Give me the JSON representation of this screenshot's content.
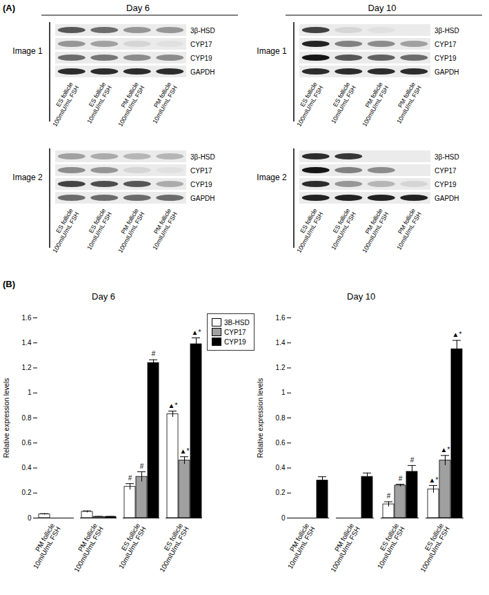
{
  "panel_labels": [
    "(A)",
    "(B)"
  ],
  "blots": {
    "lanes": [
      "ES follicle\n100mIU/mL FSH",
      "ES follicle\n10mIU/mL FSH",
      "PM follicle\n100mIU/mL FSH",
      "PM follicle\n10mIU/mL FSH"
    ],
    "days": [
      {
        "title": "Day 6",
        "images": [
          {
            "label": "Image 1",
            "rows": [
              {
                "protein": "3β-HSD",
                "intensity": [
                  0.7,
                  0.6,
                  0.4,
                  0.4
                ]
              },
              {
                "protein": "CYP17",
                "intensity": [
                  0.4,
                  0.35,
                  0.1,
                  0.05
                ]
              },
              {
                "protein": "CYP19",
                "intensity": [
                  0.6,
                  0.55,
                  0.45,
                  0.45
                ]
              },
              {
                "protein": "GAPDH",
                "intensity": [
                  0.9,
                  0.9,
                  0.9,
                  0.9
                ]
              }
            ]
          },
          {
            "label": "Image 2",
            "rows": [
              {
                "protein": "3β-HSD",
                "intensity": [
                  0.35,
                  0.3,
                  0.25,
                  0.25
                ]
              },
              {
                "protein": "CYP17",
                "intensity": [
                  0.45,
                  0.4,
                  0.1,
                  0.05
                ]
              },
              {
                "protein": "CYP19",
                "intensity": [
                  0.8,
                  0.75,
                  0.7,
                  0.3
                ]
              },
              {
                "protein": "GAPDH",
                "intensity": [
                  0.6,
                  0.6,
                  0.6,
                  0.6
                ]
              }
            ]
          }
        ]
      },
      {
        "title": "Day 10",
        "images": [
          {
            "label": "Image 1",
            "rows": [
              {
                "protein": "3β-HSD",
                "intensity": [
                  0.8,
                  0.1,
                  0.05,
                  0
                ]
              },
              {
                "protein": "CYP17",
                "intensity": [
                  0.95,
                  0.5,
                  0.45,
                  0.35
                ]
              },
              {
                "protein": "CYP19",
                "intensity": [
                  1,
                  0.7,
                  0.65,
                  0.6
                ]
              },
              {
                "protein": "GAPDH",
                "intensity": [
                  0.9,
                  0.9,
                  0.9,
                  0.9
                ]
              }
            ]
          },
          {
            "label": "Image 2",
            "rows": [
              {
                "protein": "3β-HSD",
                "intensity": [
                  0.9,
                  0.85,
                  0,
                  0
                ]
              },
              {
                "protein": "CYP17",
                "intensity": [
                  1,
                  0.5,
                  0.45,
                  0
                ]
              },
              {
                "protein": "CYP19",
                "intensity": [
                  0.9,
                  0.4,
                  0.25,
                  0.1
                ]
              },
              {
                "protein": "GAPDH",
                "intensity": [
                  0.95,
                  0.95,
                  0.95,
                  0.95
                ]
              }
            ]
          }
        ]
      }
    ]
  },
  "chart_data": [
    {
      "type": "bar",
      "title": "Day 6",
      "y_label": "Relative expression levels",
      "categories": [
        "PM follicle\n10mIU/mL FSH",
        "PM follicle\n100mIU/mL FSH",
        "ES follicle\n10mIU/mL FSH",
        "ES follicle\n100mIU/mL FSH"
      ],
      "ylim": [
        0,
        1.6
      ],
      "yticks": [
        0,
        0.2,
        0.4,
        0.6,
        0.8,
        1,
        1.2,
        1.4,
        1.6
      ],
      "legend": "right",
      "series": [
        {
          "name": "3B-HSD",
          "color": "#ffffff",
          "values": [
            0.03,
            0.05,
            0.25,
            0.83
          ],
          "errors": [
            0.005,
            0.007,
            0.025,
            0.025
          ],
          "annotations": [
            null,
            null,
            "#",
            "▲*"
          ]
        },
        {
          "name": "CYP17",
          "color": "#a0a0a0",
          "values": [
            0,
            0.01,
            0.33,
            0.46
          ],
          "errors": [
            0,
            0.003,
            0.04,
            0.03
          ],
          "annotations": [
            null,
            null,
            "#",
            "▲*"
          ]
        },
        {
          "name": "CYP19",
          "color": "#000000",
          "values": [
            0,
            0.01,
            1.24,
            1.39
          ],
          "errors": [
            0,
            0.003,
            0.025,
            0.05
          ],
          "annotations": [
            null,
            null,
            "#",
            "▲*"
          ]
        }
      ]
    },
    {
      "type": "bar",
      "title": "Day 10",
      "y_label": "Relative expression levels",
      "categories": [
        "PM follicle\n10mIU/mL FSH",
        "PM follicle\n100mIU/mL FSH",
        "ES follicle\n10mIU/mL FSH",
        "ES follicle\n100mIU/mL FSH"
      ],
      "ylim": [
        0,
        1.6
      ],
      "yticks": [
        0,
        0.2,
        0.4,
        0.6,
        0.8,
        1,
        1.2,
        1.4,
        1.6
      ],
      "series": [
        {
          "name": "3B-HSD",
          "color": "#ffffff",
          "values": [
            0,
            0,
            0.11,
            0.23
          ],
          "errors": [
            0,
            0,
            0.02,
            0.03
          ],
          "annotations": [
            null,
            null,
            "#",
            "▲*"
          ]
        },
        {
          "name": "CYP17",
          "color": "#a0a0a0",
          "values": [
            0,
            0,
            0.26,
            0.46
          ],
          "errors": [
            0,
            0,
            0.01,
            0.04
          ],
          "annotations": [
            null,
            null,
            "#",
            "▲*"
          ]
        },
        {
          "name": "CYP19",
          "color": "#000000",
          "values": [
            0.3,
            0.33,
            0.37,
            1.35
          ],
          "errors": [
            0.03,
            0.03,
            0.05,
            0.07
          ],
          "annotations": [
            null,
            null,
            "#",
            "▲*"
          ]
        }
      ]
    }
  ]
}
